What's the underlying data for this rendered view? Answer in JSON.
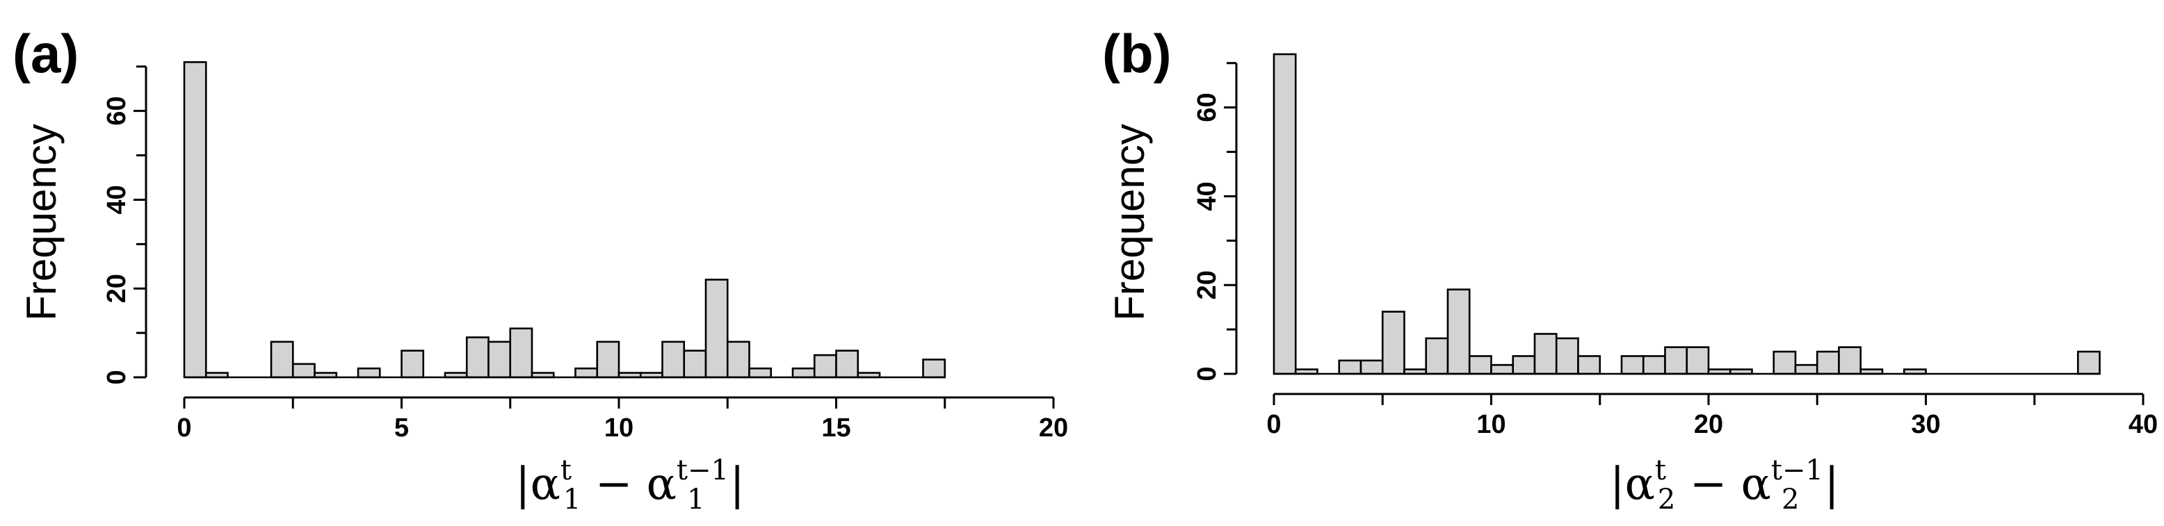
{
  "chart_data": [
    {
      "type": "bar",
      "panel_label": "(a)",
      "ylabel": "Frequency",
      "xlabel": {
        "base": "|α",
        "sub": "1",
        "sup": "t",
        "mid": " − α",
        "sub2": "1",
        "sup2": "t−1",
        "end": "|"
      },
      "xlim": [
        0,
        20
      ],
      "ylim": [
        0,
        72
      ],
      "bin_width": 0.5,
      "x_ticks": [
        "0",
        "5",
        "10",
        "15",
        "20"
      ],
      "y_ticks": [
        "0",
        "20",
        "40",
        "60"
      ],
      "bins_start": [
        0,
        0.5,
        1,
        1.5,
        2,
        2.5,
        3,
        3.5,
        4,
        4.5,
        5,
        5.5,
        6,
        6.5,
        7,
        7.5,
        8,
        8.5,
        9,
        9.5,
        10,
        10.5,
        11,
        11.5,
        12,
        12.5,
        13,
        13.5,
        14,
        14.5,
        15,
        15.5,
        16,
        16.5,
        17
      ],
      "values": [
        71,
        1,
        0,
        0,
        8,
        3,
        1,
        0,
        2,
        0,
        6,
        0,
        1,
        9,
        8,
        11,
        1,
        0,
        2,
        8,
        1,
        1,
        8,
        6,
        22,
        8,
        2,
        0,
        2,
        5,
        6,
        1,
        0,
        0,
        4
      ],
      "colors": {
        "fill": "#d3d3d3",
        "stroke": "#000000"
      }
    },
    {
      "type": "bar",
      "panel_label": "(b)",
      "ylabel": "Frequency",
      "xlabel": {
        "base": "|α",
        "sub": "2",
        "sup": "t",
        "mid": " − α",
        "sub2": "2",
        "sup2": "t−1",
        "end": "|"
      },
      "xlim": [
        0,
        40
      ],
      "ylim": [
        0,
        72
      ],
      "bin_width": 1,
      "x_ticks": [
        "0",
        "10",
        "20",
        "30",
        "40"
      ],
      "y_ticks": [
        "0",
        "20",
        "40",
        "60"
      ],
      "bins_start": [
        0,
        1,
        2,
        3,
        4,
        5,
        6,
        7,
        8,
        9,
        10,
        11,
        12,
        13,
        14,
        15,
        16,
        17,
        18,
        19,
        20,
        21,
        22,
        23,
        24,
        25,
        26,
        27,
        28,
        29,
        30,
        31,
        32,
        33,
        34,
        35,
        36,
        37
      ],
      "values": [
        72,
        1,
        0,
        3,
        3,
        14,
        1,
        8,
        19,
        4,
        2,
        4,
        9,
        8,
        4,
        0,
        4,
        4,
        6,
        6,
        1,
        1,
        0,
        5,
        2,
        5,
        6,
        1,
        0,
        1,
        0,
        0,
        0,
        0,
        0,
        0,
        0,
        5
      ],
      "colors": {
        "fill": "#d3d3d3",
        "stroke": "#000000"
      }
    }
  ]
}
